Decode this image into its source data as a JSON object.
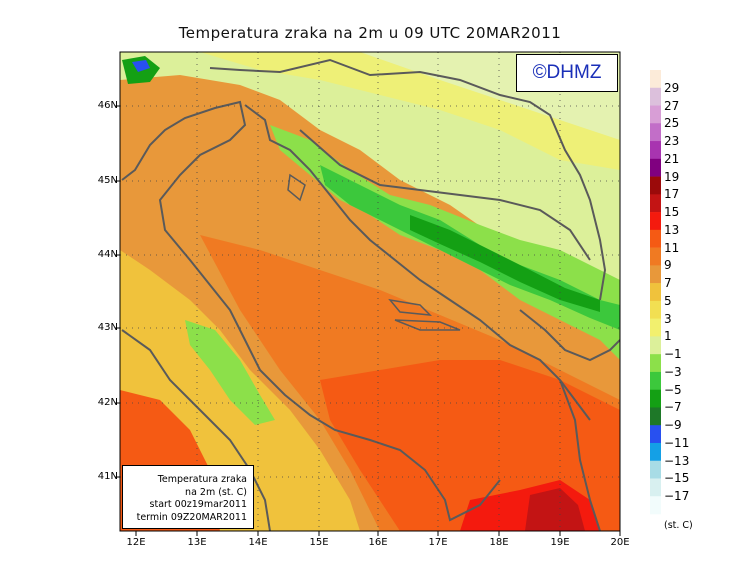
{
  "title": "Temperatura zraka na 2m u 09 UTC 20MAR2011",
  "watermark": "©DHMZ",
  "info_box": {
    "line1": "Temperatura zraka",
    "line2": "na 2m (st. C)",
    "line3": "start 00z19mar2011",
    "line4": "termin 09Z20MAR2011"
  },
  "lat_labels": [
    "46N",
    "45N",
    "44N",
    "43N",
    "42N",
    "41N"
  ],
  "lon_labels": [
    "12E",
    "13E",
    "14E",
    "15E",
    "16E",
    "17E",
    "18E",
    "19E",
    "20E"
  ],
  "legend": {
    "unit": "(st. C)",
    "levels": [
      "29",
      "27",
      "25",
      "23",
      "21",
      "19",
      "17",
      "15",
      "13",
      "11",
      "9",
      "7",
      "5",
      "3",
      "1",
      "−1",
      "−3",
      "−5",
      "−7",
      "−9",
      "−11",
      "−13",
      "−15",
      "−17"
    ],
    "colors": [
      "#fcebd9",
      "#dcc0dc",
      "#d89ed6",
      "#c26ec8",
      "#a834b0",
      "#800080",
      "#9b0a0a",
      "#c31414",
      "#f41a0e",
      "#f55a14",
      "#f07a22",
      "#e8983a",
      "#f0c23c",
      "#f2df52",
      "#f2f06e",
      "#dcf09a",
      "#8ce04a",
      "#3cc83c",
      "#14a014",
      "#1e7828",
      "#2850f0",
      "#14a0e6",
      "#a8dce6",
      "#d8f0f0",
      "#f2fcfc"
    ]
  },
  "colors": {
    "frame": "#000000",
    "coast": "#5a5a5a",
    "grid": "#444444"
  }
}
